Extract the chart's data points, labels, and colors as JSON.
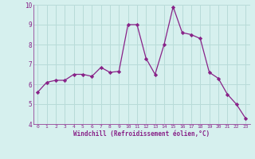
{
  "x": [
    0,
    1,
    2,
    3,
    4,
    5,
    6,
    7,
    8,
    9,
    10,
    11,
    12,
    13,
    14,
    15,
    16,
    17,
    18,
    19,
    20,
    21,
    22,
    23
  ],
  "y": [
    5.6,
    6.1,
    6.2,
    6.2,
    6.5,
    6.5,
    6.4,
    6.85,
    6.6,
    6.65,
    9.0,
    9.0,
    7.3,
    6.5,
    8.0,
    9.9,
    8.6,
    8.5,
    8.3,
    6.6,
    6.3,
    5.5,
    5.0,
    4.3
  ],
  "line_color": "#882288",
  "marker": "D",
  "marker_size": 2.2,
  "bg_color": "#d6f0ee",
  "grid_color": "#b8dbd8",
  "xlabel": "Windchill (Refroidissement éolien,°C)",
  "xlabel_color": "#882288",
  "tick_color": "#882288",
  "ylim": [
    4,
    10
  ],
  "xlim": [
    -0.5,
    23.5
  ],
  "yticks": [
    4,
    5,
    6,
    7,
    8,
    9,
    10
  ],
  "xticks": [
    0,
    1,
    2,
    3,
    4,
    5,
    6,
    7,
    8,
    9,
    10,
    11,
    12,
    13,
    14,
    15,
    16,
    17,
    18,
    19,
    20,
    21,
    22,
    23
  ]
}
